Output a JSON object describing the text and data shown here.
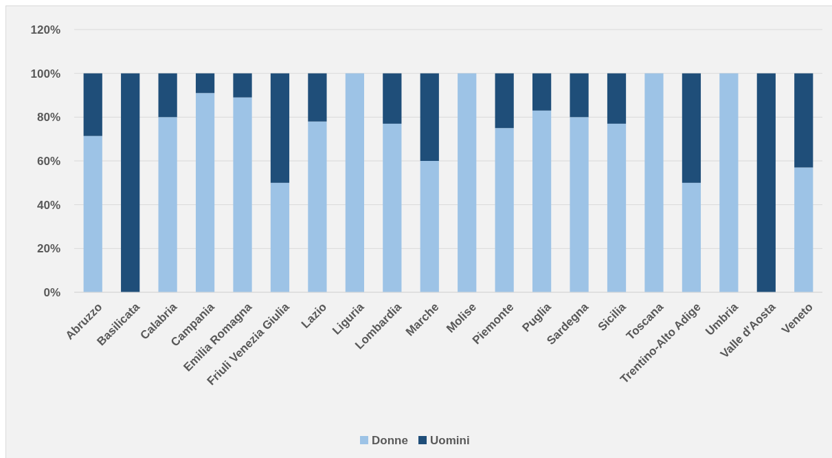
{
  "chart_data": {
    "type": "bar",
    "stacked": true,
    "categories": [
      "Abruzzo",
      "Basilicata",
      "Calabria",
      "Campania",
      "Emilia Romagna",
      "Friuli Venezia Giulia",
      "Lazio",
      "Liguria",
      "Lombardia",
      "Marche",
      "Molise",
      "Piemonte",
      "Puglia",
      "Sardegna",
      "Sicilia",
      "Toscana",
      "Trentino-Alto Adige",
      "Umbria",
      "Valle d'Aosta",
      "Veneto"
    ],
    "series": [
      {
        "name": "Donne",
        "color": "#9dc3e6",
        "values": [
          71.4,
          0,
          80,
          91,
          89,
          50,
          78,
          100,
          77,
          60,
          100,
          75,
          83,
          80,
          77,
          100,
          50,
          100,
          0,
          57
        ]
      },
      {
        "name": "Uomini",
        "color": "#1f4e79",
        "values": [
          28.6,
          100,
          20,
          9,
          11,
          50,
          22,
          0,
          23,
          40,
          0,
          25,
          17,
          20,
          23,
          0,
          50,
          0,
          100,
          43
        ]
      }
    ],
    "ylim": [
      0,
      120
    ],
    "yticks": [
      {
        "value": 0,
        "label": "0%"
      },
      {
        "value": 20,
        "label": "20%"
      },
      {
        "value": 40,
        "label": "40%"
      },
      {
        "value": 60,
        "label": "60%"
      },
      {
        "value": 80,
        "label": "80%"
      },
      {
        "value": 100,
        "label": "100%"
      },
      {
        "value": 120,
        "label": "120%"
      }
    ],
    "grid": "y",
    "legend": "bottom"
  }
}
